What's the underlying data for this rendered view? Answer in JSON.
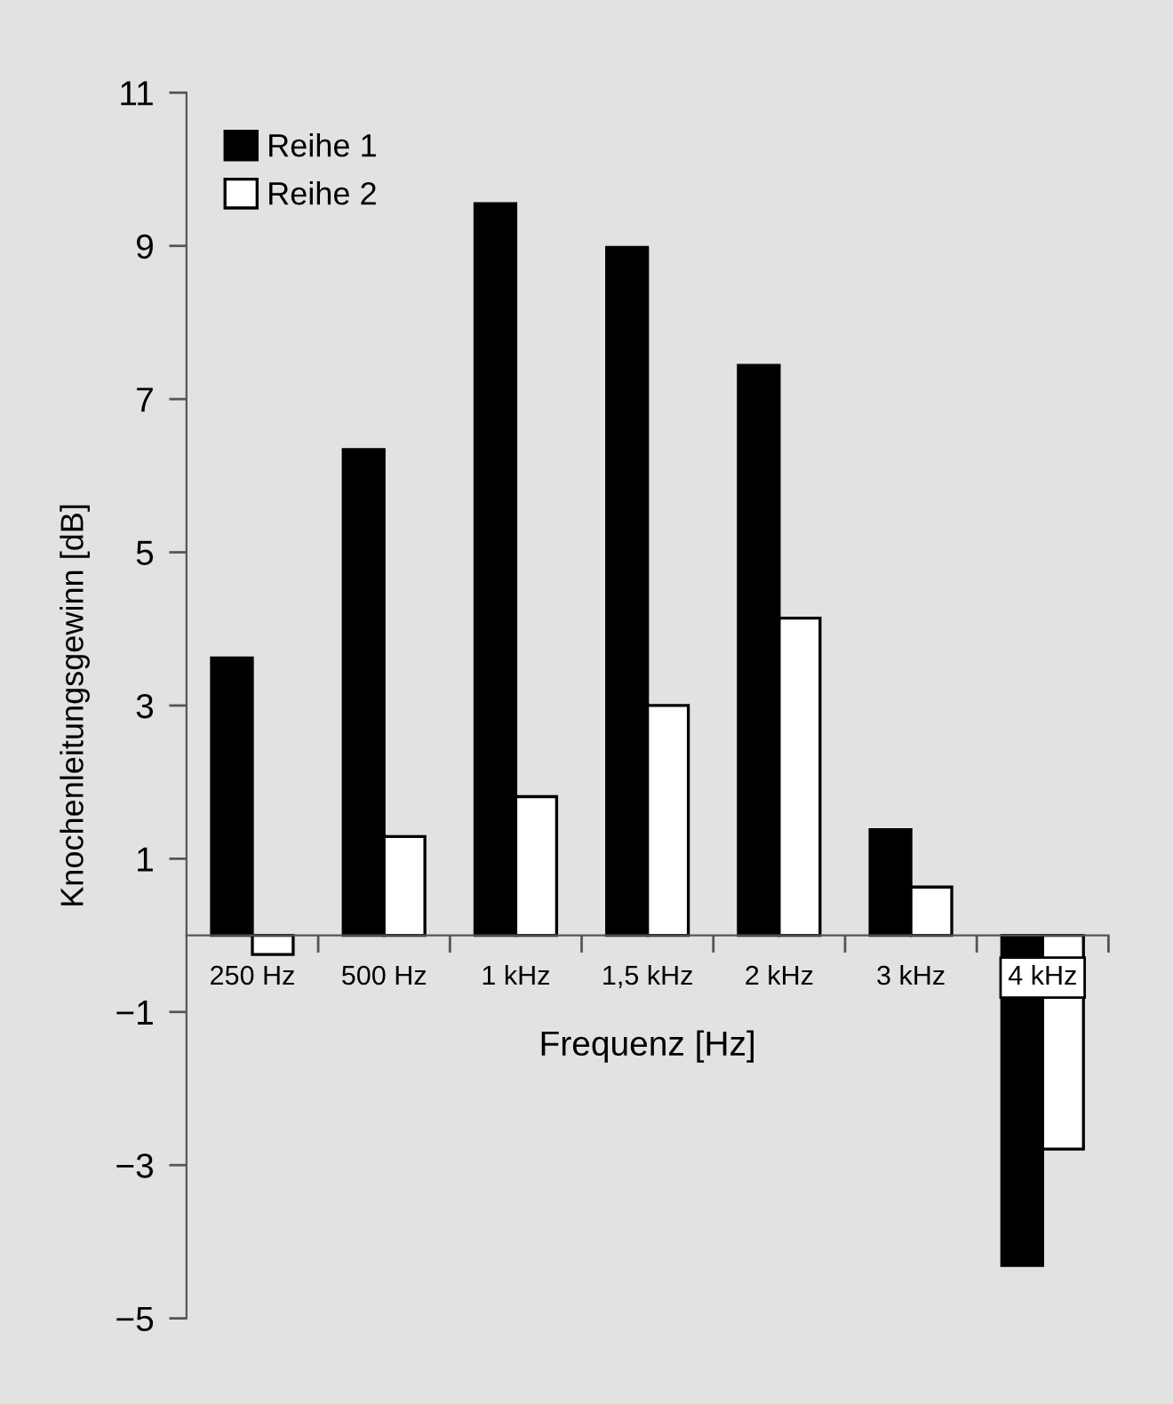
{
  "chart_data": {
    "type": "bar",
    "categories": [
      "250 Hz",
      "500 Hz",
      "1 kHz",
      "1,5 kHz",
      "2 kHz",
      "3 kHz",
      "4 kHz"
    ],
    "series": [
      {
        "name": "Reihe 1",
        "color": "#000000",
        "values": [
          3.62,
          6.34,
          9.55,
          8.98,
          7.44,
          1.38,
          -4.31
        ]
      },
      {
        "name": "Reihe 2",
        "color": "#ffffff",
        "values": [
          -0.25,
          1.29,
          1.81,
          3.0,
          4.14,
          0.63,
          -2.79
        ]
      }
    ],
    "xlabel": "Frequenz [Hz]",
    "ylabel": "Knochenleitungsgewinn [dB]",
    "ylim": [
      -5,
      11
    ],
    "yticks": [
      {
        "value": -5,
        "label": "−5"
      },
      {
        "value": -3,
        "label": "−3"
      },
      {
        "value": -1,
        "label": "−1"
      },
      1,
      3,
      5,
      7,
      9,
      11
    ],
    "grid": false,
    "legend": "top left"
  }
}
